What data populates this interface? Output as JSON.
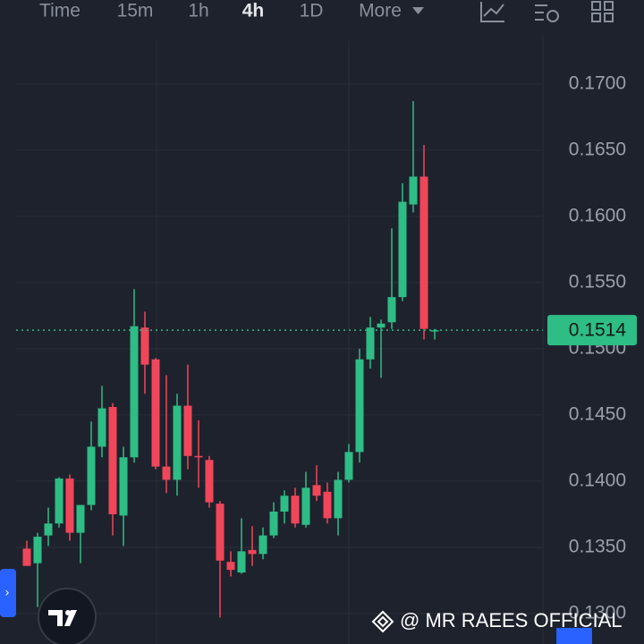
{
  "toolbar": {
    "items": [
      "Time",
      "15m",
      "1h",
      "4h",
      "1D",
      "More"
    ],
    "active": 3
  },
  "watermark": "@ MR RAEES OFFICIAL",
  "chart_data": {
    "type": "candlestick",
    "up_color": "#2ebd85",
    "down_color": "#f0465a",
    "ylim": [
      0.1277,
      0.1733
    ],
    "yticks": [
      {
        "value": 0.13,
        "label": "0.1300"
      },
      {
        "value": 0.135,
        "label": "0.1350"
      },
      {
        "value": 0.14,
        "label": "0.1400"
      },
      {
        "value": 0.145,
        "label": "0.1450"
      },
      {
        "value": 0.15,
        "label": "0.1500"
      },
      {
        "value": 0.155,
        "label": "0.1550"
      },
      {
        "value": 0.16,
        "label": "0.1600"
      },
      {
        "value": 0.165,
        "label": "0.1650"
      },
      {
        "value": 0.17,
        "label": "0.1700"
      }
    ],
    "grid": true,
    "last_price": 0.1514,
    "open": [
      0.1349,
      0.1338,
      0.1359,
      0.1368,
      0.1402,
      0.1361,
      0.1382,
      0.1426,
      0.1456,
      0.1374,
      0.1418,
      0.1516,
      0.1492,
      0.1411,
      0.1401,
      0.1457,
      0.1419,
      0.1416,
      0.1383,
      0.1339,
      0.1331,
      0.1348,
      0.1345,
      0.1359,
      0.1377,
      0.1389,
      0.1367,
      0.1397,
      0.1392,
      0.1372,
      0.1401,
      0.1422,
      0.1492,
      0.1516,
      0.152,
      0.1539,
      0.1609,
      0.163,
      0.1513
    ],
    "high": [
      0.1355,
      0.1361,
      0.138,
      0.1403,
      0.1405,
      0.1378,
      0.1445,
      0.1472,
      0.1459,
      0.1426,
      0.1545,
      0.1528,
      0.1493,
      0.148,
      0.1466,
      0.1488,
      0.1446,
      0.1419,
      0.1385,
      0.1347,
      0.1372,
      0.1366,
      0.1365,
      0.1384,
      0.1393,
      0.1395,
      0.1407,
      0.1412,
      0.1399,
      0.1407,
      0.1428,
      0.15,
      0.1524,
      0.1522,
      0.1591,
      0.1625,
      0.1687,
      0.1654,
      0.1515
    ],
    "low": [
      0.1336,
      0.1305,
      0.1351,
      0.1365,
      0.1355,
      0.1338,
      0.1378,
      0.1418,
      0.1359,
      0.1351,
      0.1414,
      0.1466,
      0.1409,
      0.1391,
      0.1389,
      0.1409,
      0.1395,
      0.138,
      0.1297,
      0.1328,
      0.133,
      0.1336,
      0.1341,
      0.1357,
      0.1368,
      0.1365,
      0.1365,
      0.1385,
      0.1368,
      0.1359,
      0.1399,
      0.1414,
      0.1485,
      0.1478,
      0.1515,
      0.1536,
      0.1603,
      0.1507,
      0.1507
    ],
    "close": [
      0.1336,
      0.1358,
      0.1368,
      0.1402,
      0.1361,
      0.1382,
      0.1426,
      0.1455,
      0.1375,
      0.1418,
      0.1517,
      0.1488,
      0.1411,
      0.1401,
      0.1457,
      0.1419,
      0.1418,
      0.1384,
      0.134,
      0.1333,
      0.1347,
      0.1345,
      0.1359,
      0.1377,
      0.1389,
      0.1368,
      0.1395,
      0.1389,
      0.1372,
      0.1401,
      0.1422,
      0.1492,
      0.1516,
      0.1519,
      0.1539,
      0.1611,
      0.163,
      0.1515,
      0.1514
    ]
  }
}
